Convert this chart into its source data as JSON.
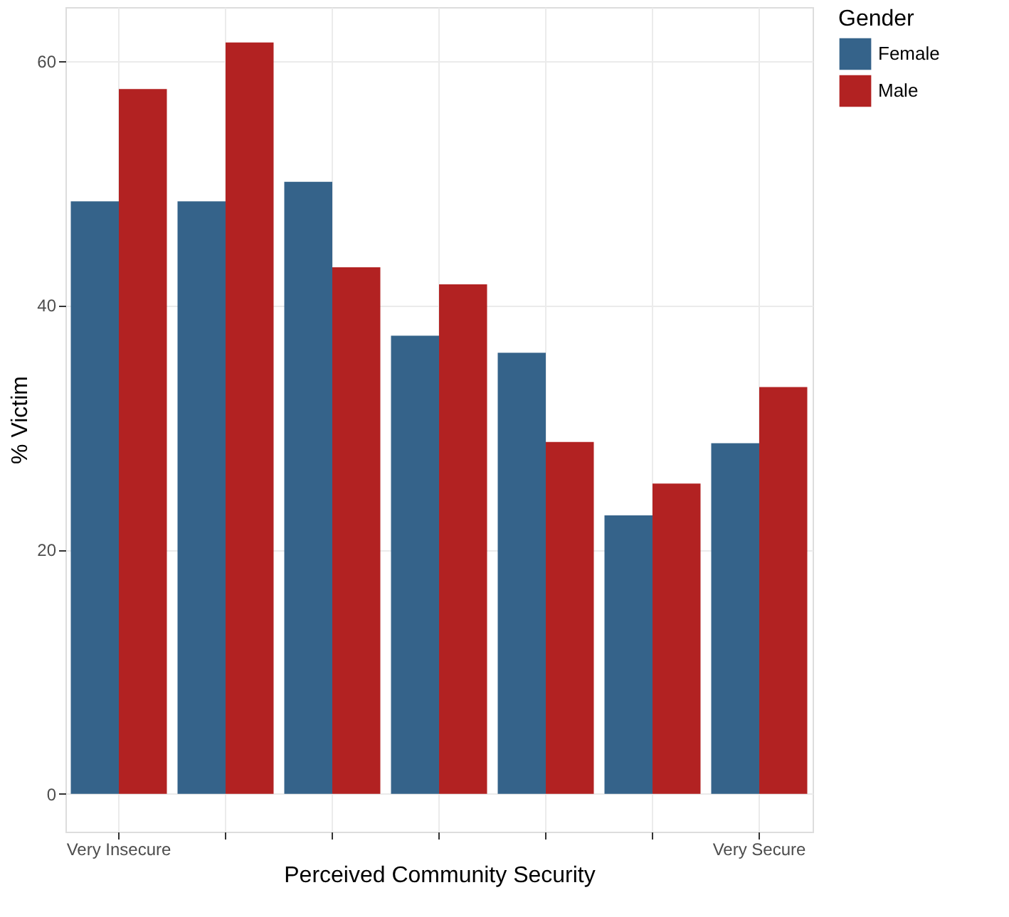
{
  "chart_data": {
    "type": "bar",
    "xlabel": "Perceived Community Security",
    "ylabel": "% Victim",
    "legend_title": "Gender",
    "categories": [
      "Very Insecure",
      null,
      null,
      null,
      null,
      null,
      "Very Secure"
    ],
    "series": [
      {
        "name": "Female",
        "color": "#35638a",
        "values": [
          48.5,
          48.5,
          50.1,
          37.5,
          36.1,
          22.8,
          28.7
        ]
      },
      {
        "name": "Male",
        "color": "#b22222",
        "values": [
          57.7,
          61.5,
          43.1,
          41.7,
          28.8,
          25.4,
          33.3
        ]
      }
    ],
    "ylim": [
      -3.1,
      64.4
    ],
    "yticks": [
      0,
      20,
      40,
      60
    ],
    "grid": true,
    "legend": "right"
  }
}
